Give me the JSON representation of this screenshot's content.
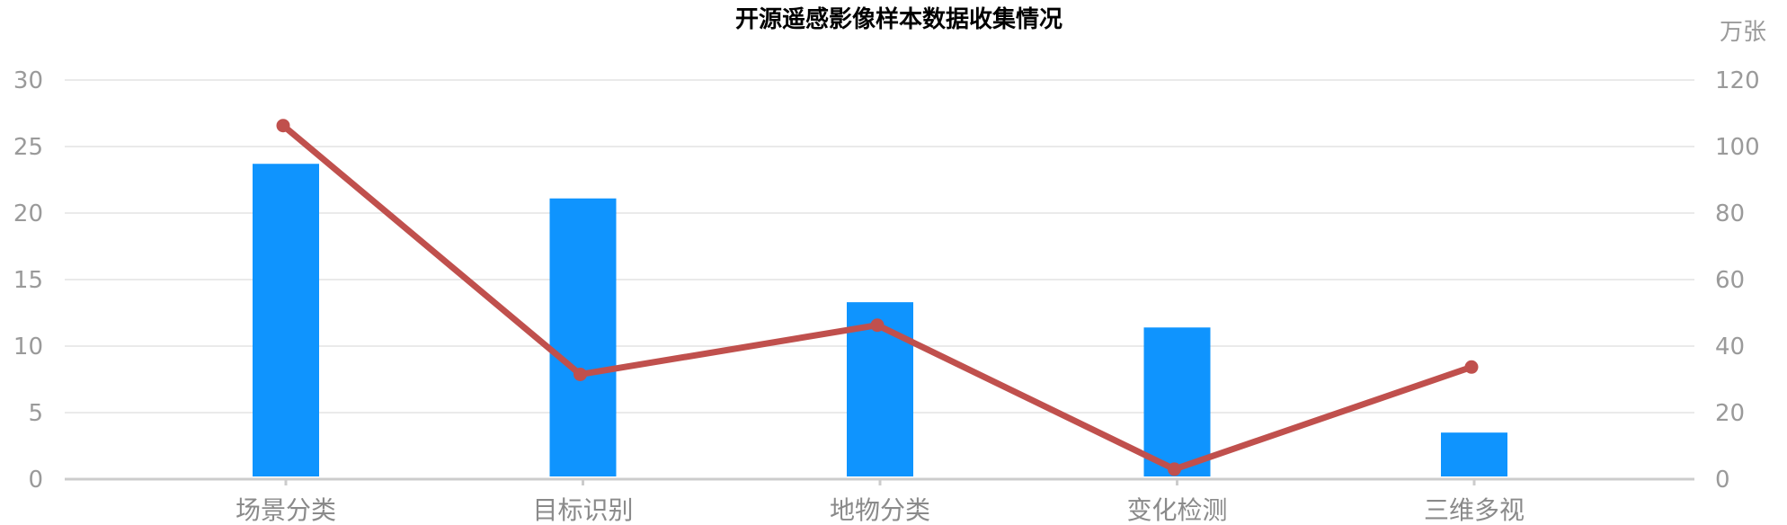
{
  "chart_data": {
    "type": "bar+line",
    "title": "开源遥感影像样本数据收集情况",
    "categories": [
      "场景分类",
      "目标识别",
      "地物分类",
      "变化检测",
      "三维多视"
    ],
    "series": [
      {
        "type": "bar",
        "axis": "left",
        "color": "#0f94fe",
        "values": [
          23.7,
          21.1,
          13.3,
          11.4,
          3.5
        ]
      },
      {
        "type": "line",
        "axis": "right",
        "color": "#c0504d",
        "values": [
          106.3,
          31.5,
          46.3,
          3.0,
          33.7
        ]
      }
    ],
    "y_left": {
      "min": 0,
      "max": 30,
      "ticks": [
        0,
        5,
        10,
        15,
        20,
        25,
        30
      ]
    },
    "y_right": {
      "min": 0,
      "max": 120,
      "ticks": [
        0,
        20,
        40,
        60,
        80,
        100,
        120
      ],
      "unit": "万张"
    },
    "grid": true,
    "legend": "none"
  }
}
